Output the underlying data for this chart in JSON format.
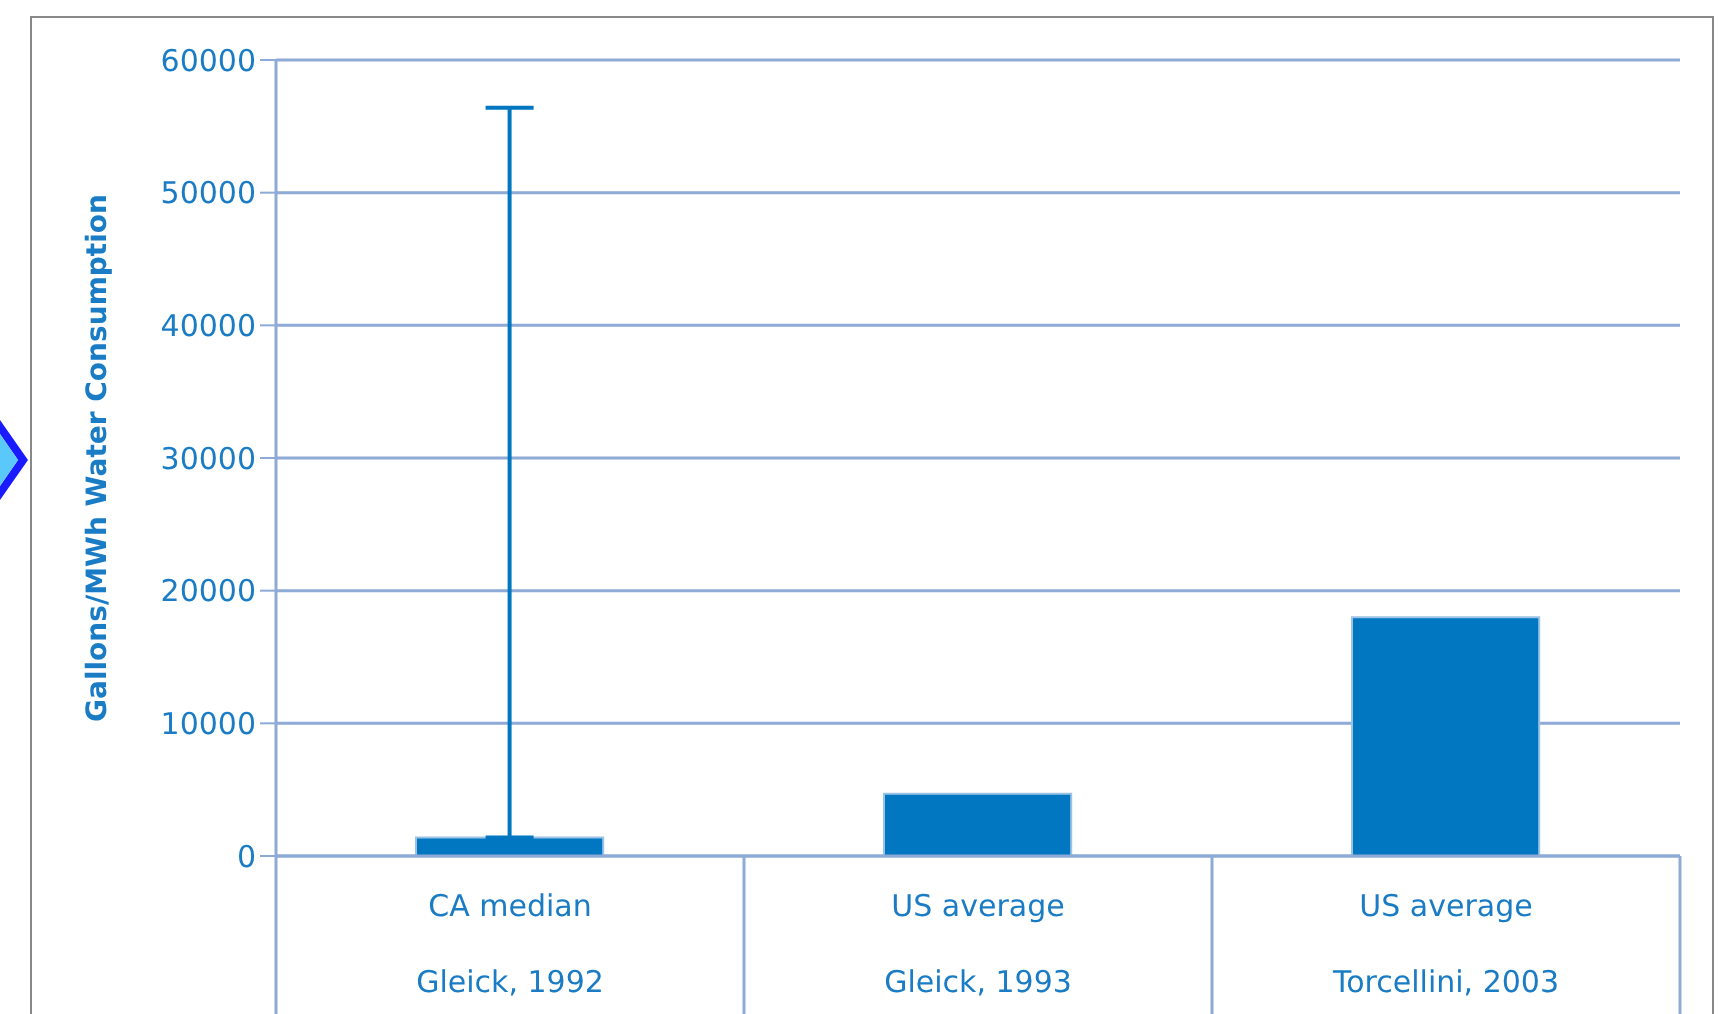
{
  "chart_data": {
    "type": "bar",
    "ylabel": "Gallons/MWh Water Consumption",
    "categories": [
      "CA median\nGleick, 1992",
      "US average\nGleick, 1993",
      "US average\nTorcellini, 2003"
    ],
    "values": [
      1400,
      4700,
      18000
    ],
    "errors": [
      [
        1400,
        56400
      ],
      null,
      null
    ],
    "color": "#0077c0",
    "ylim": [
      0,
      60000
    ],
    "yticks": [
      0,
      10000,
      20000,
      30000,
      40000,
      50000,
      60000
    ],
    "grid": "y",
    "legend": false
  }
}
